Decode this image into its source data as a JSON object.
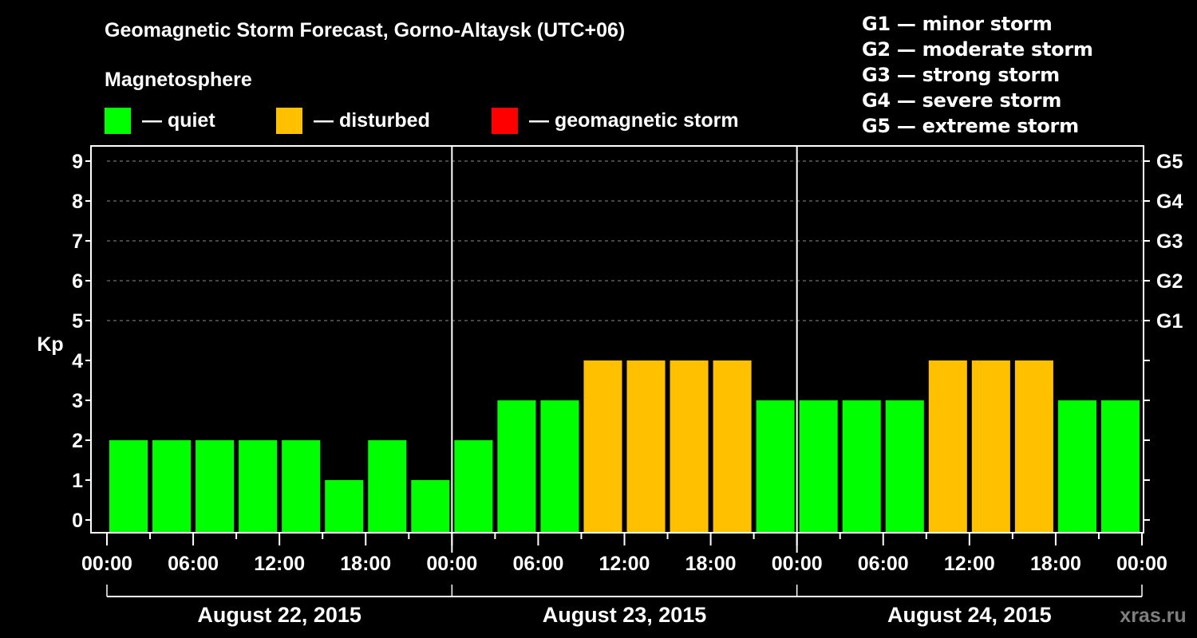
{
  "header": {
    "title": "Geomagnetic Storm Forecast, Gorno-Altaysk (UTC+06)",
    "subtitle": "Magnetosphere"
  },
  "legend": {
    "items": [
      {
        "label": "— quiet",
        "color": "#00ff00"
      },
      {
        "label": "— disturbed",
        "color": "#ffc000"
      },
      {
        "label": "— geomagnetic storm",
        "color": "#ff0000"
      }
    ]
  },
  "storm_scale": {
    "items": [
      "G1 — minor storm",
      "G2 — moderate storm",
      "G3 — strong storm",
      "G4 — severe storm",
      "G5 — extreme storm"
    ]
  },
  "watermark": "xras.ru",
  "chart_data": {
    "type": "bar",
    "title": "Geomagnetic Storm Forecast, Gorno-Altaysk (UTC+06)",
    "xlabel": "",
    "ylabel": "Kp",
    "ylim": [
      0,
      9
    ],
    "yticks": [
      0,
      1,
      2,
      3,
      4,
      5,
      6,
      7,
      8,
      9
    ],
    "right_axis_labels": [
      {
        "kp": 5,
        "label": "G1"
      },
      {
        "kp": 6,
        "label": "G2"
      },
      {
        "kp": 7,
        "label": "G3"
      },
      {
        "kp": 8,
        "label": "G4"
      },
      {
        "kp": 9,
        "label": "G5"
      }
    ],
    "grid": "dashed horizontal at Kp 5-9",
    "xtick_labels": [
      "00:00",
      "06:00",
      "12:00",
      "18:00",
      "00:00",
      "06:00",
      "12:00",
      "18:00",
      "00:00",
      "06:00",
      "12:00",
      "18:00",
      "00:00"
    ],
    "days": [
      "August 22, 2015",
      "August 23, 2015",
      "August 24, 2015"
    ],
    "categories": [
      "Aug 22 00-03",
      "Aug 22 03-06",
      "Aug 22 06-09",
      "Aug 22 09-12",
      "Aug 22 12-15",
      "Aug 22 15-18",
      "Aug 22 18-21",
      "Aug 22 21-24",
      "Aug 23 00-03",
      "Aug 23 03-06",
      "Aug 23 06-09",
      "Aug 23 09-12",
      "Aug 23 12-15",
      "Aug 23 15-18",
      "Aug 23 18-21",
      "Aug 23 21-24",
      "Aug 24 00-03",
      "Aug 24 03-06",
      "Aug 24 06-09",
      "Aug 24 09-12",
      "Aug 24 12-15",
      "Aug 24 15-18",
      "Aug 24 18-21",
      "Aug 24 21-24"
    ],
    "values": [
      2,
      2,
      2,
      2,
      2,
      1,
      2,
      1,
      2,
      3,
      3,
      4,
      4,
      4,
      4,
      3,
      3,
      3,
      3,
      4,
      4,
      4,
      3,
      3
    ],
    "status": [
      "quiet",
      "quiet",
      "quiet",
      "quiet",
      "quiet",
      "quiet",
      "quiet",
      "quiet",
      "quiet",
      "quiet",
      "quiet",
      "disturbed",
      "disturbed",
      "disturbed",
      "disturbed",
      "quiet",
      "quiet",
      "quiet",
      "quiet",
      "disturbed",
      "disturbed",
      "disturbed",
      "quiet",
      "quiet"
    ],
    "colors": {
      "quiet": "#00ff00",
      "disturbed": "#ffc000",
      "storm": "#ff0000"
    },
    "legend_position": "top"
  }
}
